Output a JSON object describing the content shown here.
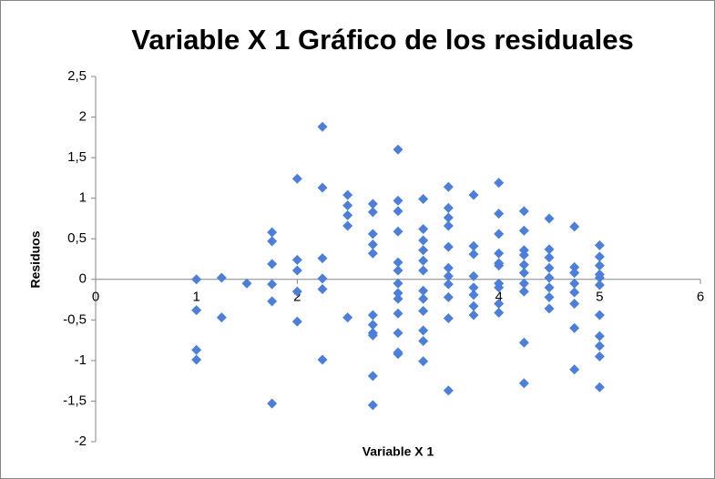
{
  "chart_data": {
    "type": "scatter",
    "title": "Variable X 1 Gráfico de los residuales",
    "xlabel": "Variable X 1",
    "ylabel": "Residuos",
    "color": "#4a7fe0",
    "xlim": [
      0,
      6
    ],
    "xticks": [
      0,
      1,
      2,
      3,
      4,
      5,
      6
    ],
    "ylim": [
      -2,
      2.5
    ],
    "yticks": [
      -2,
      {
        "value": -1.5,
        "label": "-1,5"
      },
      -1,
      {
        "value": -0.5,
        "label": "-0,5"
      },
      0,
      {
        "value": 0.5,
        "label": "0,5"
      },
      1,
      {
        "value": 1.5,
        "label": "1,5"
      },
      2,
      {
        "value": 2.5,
        "label": "2,5"
      }
    ],
    "grid": false,
    "x": [
      1,
      1,
      1,
      1,
      1.25,
      1.25,
      1.5,
      1.75,
      1.75,
      1.75,
      1.75,
      1.75,
      1.75,
      2,
      2,
      2,
      2,
      2,
      2.25,
      2.25,
      2.25,
      2.25,
      2.25,
      2.25,
      2.5,
      2.5,
      2.5,
      2.5,
      2.5,
      2.75,
      2.75,
      2.75,
      2.75,
      2.75,
      2.75,
      2.75,
      2.75,
      2.75,
      2.75,
      2.75,
      3,
      3,
      3,
      3,
      3,
      3,
      3,
      3,
      3,
      3,
      3,
      3,
      3,
      3.25,
      3.25,
      3.25,
      3.25,
      3.25,
      3.25,
      3.25,
      3.25,
      3.25,
      3.25,
      3.25,
      3.25,
      3.5,
      3.5,
      3.5,
      3.5,
      3.5,
      3.5,
      3.5,
      3.5,
      3.5,
      3.5,
      3.5,
      3.75,
      3.75,
      3.75,
      3.75,
      3.75,
      3.75,
      3.75,
      3.75,
      4,
      4,
      4,
      4,
      4,
      4,
      4,
      4,
      4,
      4,
      4.25,
      4.25,
      4.25,
      4.25,
      4.25,
      4.25,
      4.25,
      4.25,
      4.25,
      4.25,
      4.5,
      4.5,
      4.5,
      4.5,
      4.5,
      4.5,
      4.5,
      4.5,
      4.75,
      4.75,
      4.75,
      4.75,
      4.75,
      4.75,
      4.75,
      4.75,
      5,
      5,
      5,
      5,
      5,
      5,
      5,
      5,
      5,
      5,
      5
    ],
    "values": [
      0,
      -0.38,
      -0.87,
      -0.99,
      0.02,
      -0.47,
      -0.05,
      0.58,
      0.47,
      0.19,
      -0.06,
      -0.27,
      -1.53,
      1.24,
      0.24,
      0.11,
      -0.15,
      -0.52,
      1.88,
      1.13,
      0.26,
      0.01,
      -0.12,
      -0.99,
      1.04,
      0.91,
      0.79,
      0.66,
      -0.47,
      0.93,
      0.83,
      0.56,
      0.43,
      0.32,
      -0.44,
      -0.56,
      -0.66,
      -0.69,
      -1.19,
      -1.55,
      1.6,
      0.97,
      0.84,
      0.59,
      0.21,
      0.11,
      -0.05,
      -0.17,
      -0.24,
      -0.42,
      -0.66,
      -0.9,
      -0.92,
      0.99,
      0.62,
      0.48,
      0.36,
      0.23,
      0.11,
      -0.14,
      -0.24,
      -0.39,
      -0.63,
      -0.76,
      -1.01,
      1.14,
      0.88,
      0.76,
      0.66,
      0.4,
      0.14,
      0.04,
      -0.06,
      -0.22,
      -0.48,
      -1.37,
      1.04,
      0.41,
      0.31,
      0.04,
      -0.1,
      -0.19,
      -0.33,
      -0.44,
      1.19,
      0.81,
      0.56,
      0.32,
      0.2,
      0.17,
      -0.05,
      -0.1,
      -0.3,
      -0.41,
      0.84,
      0.6,
      0.36,
      0.3,
      0.18,
      0.08,
      -0.05,
      -0.15,
      -0.78,
      -1.28,
      0.75,
      0.37,
      0.27,
      0.14,
      0.02,
      -0.1,
      -0.22,
      -0.36,
      0.65,
      0.15,
      0.08,
      -0.05,
      -0.16,
      -0.3,
      -0.6,
      -1.11,
      0.42,
      0.28,
      0.17,
      0.06,
      0.02,
      -0.07,
      -0.44,
      -0.7,
      -0.82,
      -0.95,
      -1.33
    ]
  }
}
